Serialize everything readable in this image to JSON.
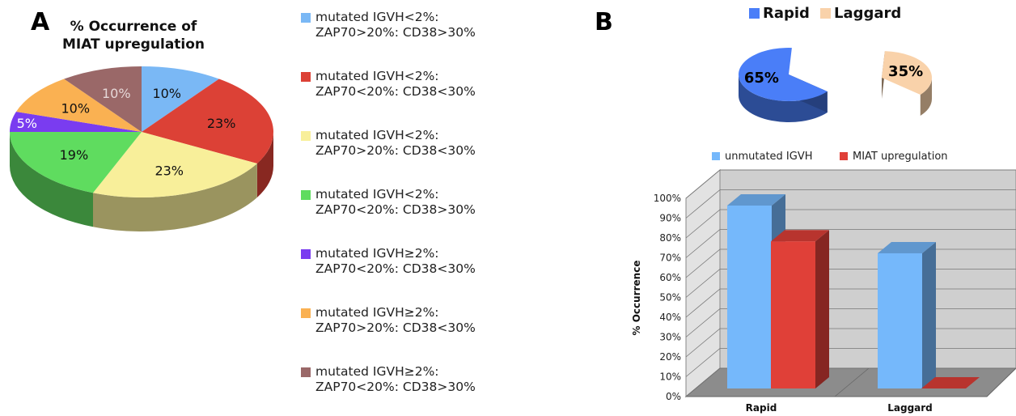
{
  "panels": {
    "a_letter": "A",
    "b_letter": "B"
  },
  "chart_data": [
    {
      "type": "pie",
      "title": "% Occurrence of MIAT upregulation",
      "title_lines": [
        "% Occurrence of",
        "MIAT upregulation"
      ],
      "slices": [
        {
          "label_lines": [
            "mutated IGVH<2%:",
            "ZAP70>20%: CD38>30%"
          ],
          "value": 10,
          "display": "10%",
          "color": "#7ab8f5"
        },
        {
          "label_lines": [
            "mutated IGVH<2%:",
            "ZAP70<20%: CD38<30%"
          ],
          "value": 23,
          "display": "23%",
          "color": "#dc4136"
        },
        {
          "label_lines": [
            "mutated IGVH<2%:",
            "ZAP70>20%: CD38<30%"
          ],
          "value": 23,
          "display": "23%",
          "color": "#f8ef9a"
        },
        {
          "label_lines": [
            "mutated IGVH<2%:",
            "ZAP70<20%: CD38>30%"
          ],
          "value": 19,
          "display": "19%",
          "color": "#5fdc5f"
        },
        {
          "label_lines": [
            "mutated IGVH≥2%:",
            "ZAP70<20%: CD38<30%"
          ],
          "value": 5,
          "display": "5%",
          "color": "#7a3cf0"
        },
        {
          "label_lines": [
            "mutated IGVH≥2%:",
            "ZAP70>20%: CD38<30%"
          ],
          "value": 10,
          "display": "10%",
          "color": "#fab152"
        },
        {
          "label_lines": [
            "mutated IGVH≥2%:",
            "ZAP70<20%: CD38>30%"
          ],
          "value": 10,
          "display": "10%",
          "color": "#9a6868"
        }
      ]
    },
    {
      "type": "pie",
      "legend": [
        "Rapid",
        "Laggard"
      ],
      "slices": [
        {
          "label": "Rapid",
          "value": 65,
          "display": "65%",
          "color": "#4a7ef8"
        },
        {
          "label": "Laggard",
          "value": 35,
          "display": "35%",
          "color": "#f9d2aa"
        }
      ]
    },
    {
      "type": "bar",
      "categories": [
        "Rapid",
        "Laggard"
      ],
      "series": [
        {
          "name": "unmutated IGVH",
          "values": [
            92,
            68
          ],
          "color": "#75b8fb"
        },
        {
          "name": "MIAT upregulation",
          "values": [
            74,
            0
          ],
          "color": "#e04038"
        }
      ],
      "ylabel": "% Occurrence",
      "ylim": [
        0,
        100
      ],
      "yticks": [
        "0%",
        "10%",
        "20%",
        "30%",
        "40%",
        "50%",
        "60%",
        "70%",
        "80%",
        "90%",
        "100%"
      ],
      "grid": true,
      "legend_position": "top"
    }
  ]
}
